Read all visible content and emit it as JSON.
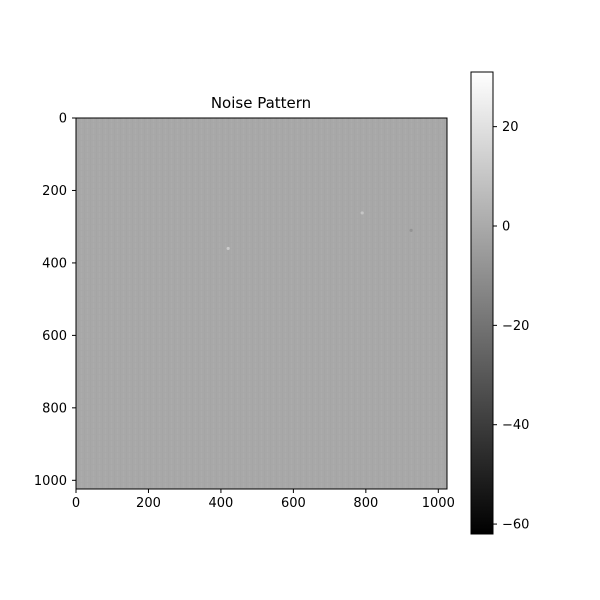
{
  "chart_data": {
    "type": "heatmap",
    "title": "Noise Pattern",
    "xlabel": "",
    "ylabel": "",
    "xlim": [
      0,
      1024
    ],
    "ylim": [
      1024,
      0
    ],
    "x_ticks": [
      0,
      200,
      400,
      600,
      800,
      1000
    ],
    "y_ticks": [
      0,
      200,
      400,
      600,
      800,
      1000
    ],
    "colormap": "gray",
    "background_value": 3,
    "background_color": "#a8a8a8",
    "colorbar": {
      "range": [
        -62,
        31
      ],
      "ticks": [
        20,
        0,
        -20,
        -40,
        -60
      ],
      "tick_labels": [
        "20",
        "0",
        "−20",
        "−40",
        "−60"
      ],
      "color_low": "#000000",
      "color_high": "#ffffff"
    },
    "hotspots": [
      {
        "x": 420,
        "y": 360,
        "value": 12
      },
      {
        "x": 790,
        "y": 262,
        "value": 10
      },
      {
        "x": 925,
        "y": 310,
        "value": -8
      }
    ]
  }
}
